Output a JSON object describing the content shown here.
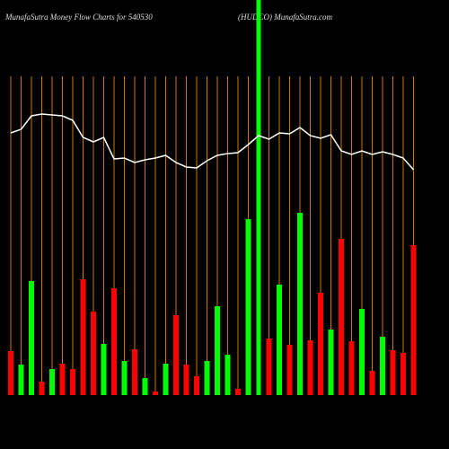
{
  "chart_data": {
    "type": "bar",
    "title": "MunafaSutra  Money Flow  Charts for 540530",
    "subtitle": "(HUDCO) MunafaSutra.com",
    "ylim": [
      0,
      440
    ],
    "series": [
      {
        "name": null,
        "values": [
          49,
          34,
          127,
          15,
          29,
          35,
          29,
          129,
          93,
          57,
          119,
          38,
          51,
          19,
          4,
          35,
          89,
          34,
          21,
          38,
          99,
          45,
          7,
          196,
          440,
          63,
          123,
          56,
          203,
          61,
          114,
          73,
          174,
          60,
          96,
          27,
          65,
          50,
          47,
          167
        ],
        "colors": [
          "#ff0000",
          "#00ff00",
          "#00ff00",
          "#ff0000",
          "#00ff00",
          "#ff0000",
          "#ff0000",
          "#ff0000",
          "#ff0000",
          "#00ff00",
          "#ff0000",
          "#00ff00",
          "#ff0000",
          "#00ff00",
          "#ff0000",
          "#00ff00",
          "#ff0000",
          "#ff0000",
          "#ff0000",
          "#00ff00",
          "#00ff00",
          "#00ff00",
          "#ff0000",
          "#00ff00",
          "#00ff00",
          "#ff0000",
          "#00ff00",
          "#ff0000",
          "#00ff00",
          "#ff0000",
          "#ff0000",
          "#00ff00",
          "#ff0000",
          "#ff0000",
          "#00ff00",
          "#ff0000",
          "#00ff00",
          "#ff0000",
          "#ff0000",
          "#ff0000"
        ]
      },
      {
        "name": null,
        "type": "line",
        "color": "#ffffff",
        "values": [
          292,
          296,
          311,
          313,
          312,
          311,
          306,
          287,
          282,
          287,
          263,
          264,
          259,
          262,
          264,
          267,
          259,
          254,
          253,
          261,
          267,
          269,
          270,
          279,
          289,
          285,
          292,
          291,
          298,
          289,
          286,
          290,
          272,
          268,
          272,
          268,
          271,
          268,
          264,
          251
        ]
      }
    ],
    "grid_color": "#cc7a00"
  }
}
